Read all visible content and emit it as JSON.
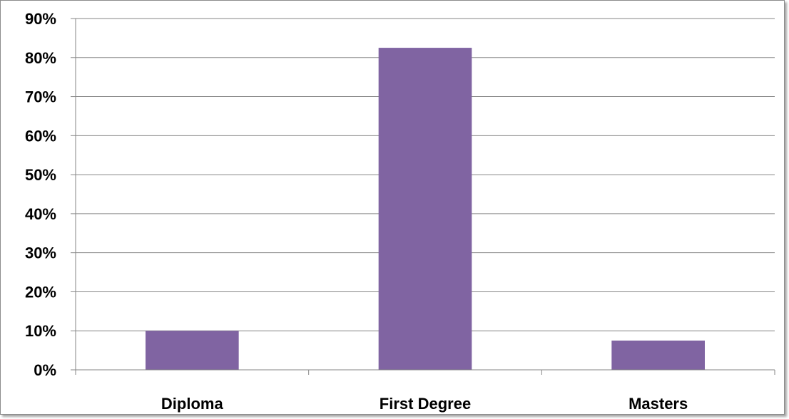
{
  "chart_data": {
    "type": "bar",
    "categories": [
      "Diploma",
      "First Degree",
      "Masters"
    ],
    "values": [
      10,
      82.5,
      7.5
    ],
    "y_tick_labels": [
      "0%",
      "10%",
      "20%",
      "30%",
      "40%",
      "50%",
      "60%",
      "70%",
      "80%",
      "90%"
    ],
    "ylim": [
      0,
      90
    ],
    "y_tick_step": 10,
    "grid": true,
    "legend": "none",
    "title": "",
    "xlabel": "",
    "ylabel": "",
    "colors": {
      "bar": "#8064a2",
      "grid": "#868686",
      "axis": "#868686"
    }
  }
}
